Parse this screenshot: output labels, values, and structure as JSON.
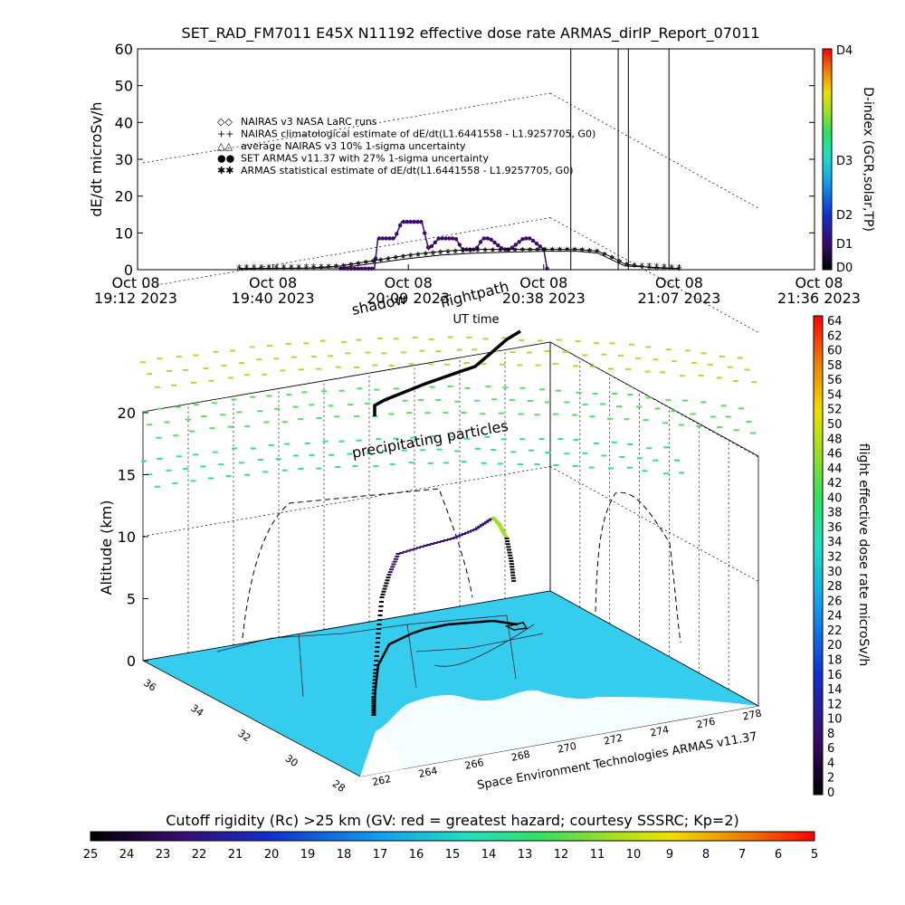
{
  "title": "SET_RAD_FM7011   E45X N11192 effective dose rate ARMAS_dirIP_Report_07011",
  "chart_data": [
    {
      "type": "line",
      "ylabel": "dE/dt microSv/h",
      "xlabel": "UT time",
      "ylim": [
        0,
        60
      ],
      "yticks": [
        "0",
        "10",
        "20",
        "30",
        "40",
        "50",
        "60"
      ],
      "xticks": [
        {
          "date": "Oct 08",
          "time": "19:12 2023"
        },
        {
          "date": "Oct 08",
          "time": "19:40 2023"
        },
        {
          "date": "Oct 08",
          "time": "20:09 2023"
        },
        {
          "date": "Oct 08",
          "time": "20:38 2023"
        },
        {
          "date": "Oct 08",
          "time": "21:07 2023"
        },
        {
          "date": "Oct 08",
          "time": "21:36 2023"
        }
      ],
      "legend": [
        {
          "symbol": "◇◇",
          "label": "NAIRAS v3 NASA LaRC runs"
        },
        {
          "symbol": "++",
          "label": "NAIRAS climatological estimate of dE/dt(L1.6441558 - L1.9257705, G0)"
        },
        {
          "symbol": "△△",
          "label": "average NAIRAS v3 10% 1-sigma uncertainty"
        },
        {
          "symbol": "●●",
          "label": "SET ARMAS v11.37 with 27% 1-sigma uncertainty"
        },
        {
          "symbol": "✱✱",
          "label": "ARMAS statistical estimate of dE/dt(L1.6441558 - L1.9257705, G0)"
        }
      ],
      "series": [
        {
          "name": "SET ARMAS v11.37 with 27% 1-sigma uncertainty",
          "color": "#3a0a6e",
          "x": [
            0.3,
            0.35,
            0.355,
            0.38,
            0.39,
            0.42,
            0.43,
            0.445,
            0.47,
            0.48,
            0.5,
            0.51,
            0.52,
            0.54,
            0.55,
            0.57,
            0.58,
            0.6,
            0.605
          ],
          "y": [
            0.3,
            0.3,
            8.5,
            8.5,
            13,
            13,
            5.5,
            8.5,
            8.5,
            5.5,
            5.5,
            8.5,
            8.5,
            5.5,
            5.5,
            8.5,
            8.5,
            5.5,
            0.3
          ]
        },
        {
          "name": "NAIRAS v3 NASA LaRC runs",
          "color": "#000",
          "x": [
            0.15,
            0.25,
            0.3,
            0.35,
            0.4,
            0.45,
            0.5,
            0.55,
            0.6,
            0.65,
            0.68,
            0.7,
            0.72,
            0.76,
            0.8
          ],
          "y": [
            0.3,
            0.4,
            1,
            2.5,
            4,
            5,
            5.5,
            5.5,
            5.5,
            5.5,
            5,
            3.5,
            1.5,
            0.5,
            0.3
          ]
        },
        {
          "name": "ARMAS statistical estimate",
          "color": "#000",
          "x": [
            0.15,
            0.3,
            0.4,
            0.45,
            0.5,
            0.55,
            0.6,
            0.65,
            0.68,
            0.72,
            0.8
          ],
          "y": [
            0.3,
            0.5,
            3,
            4,
            4.5,
            4.8,
            5,
            5,
            4.5,
            1,
            0.3
          ]
        }
      ],
      "spikes_x": [
        0.64,
        0.71,
        0.725,
        0.785
      ],
      "right_axis": {
        "label": "D-index (GCR,solar,TP)",
        "ticks": [
          "D4",
          "D3",
          "D2",
          "D1",
          "D0"
        ]
      }
    },
    {
      "type": "scatter",
      "ylabel": "Altitude (km)",
      "yticks": [
        "0",
        "5",
        "10",
        "15",
        "20"
      ],
      "lat_ticks": [
        "36",
        "34",
        "32",
        "30",
        "28"
      ],
      "lon_ticks": [
        "262",
        "264",
        "266",
        "268",
        "270",
        "272",
        "274",
        "276",
        "278"
      ],
      "annotations": {
        "shadow": "shadow",
        "flightpath": "flightpath",
        "particles": "precipitating particles"
      },
      "credit": "Space Environment Technologies ARMAS v11.37",
      "colorbar_label": "flight effective dose rate microSv/h",
      "colorbar_ticks": [
        "64",
        "62",
        "60",
        "58",
        "56",
        "54",
        "52",
        "50",
        "48",
        "46",
        "44",
        "42",
        "40",
        "38",
        "36",
        "34",
        "32",
        "30",
        "28",
        "26",
        "24",
        "22",
        "20",
        "18",
        "16",
        "14",
        "12",
        "10",
        "8",
        "6",
        "4",
        "2",
        "0"
      ]
    }
  ],
  "bottom_bar": {
    "label": "Cutoff rigidity (Rc) >25 km (GV: red = greatest hazard; courtesy SSSRC; Kp=2)",
    "ticks": [
      "25",
      "24",
      "23",
      "22",
      "21",
      "20",
      "19",
      "18",
      "17",
      "16",
      "15",
      "14",
      "13",
      "12",
      "11",
      "10",
      "9",
      "8",
      "7",
      "6",
      "5"
    ]
  },
  "colors": {
    "sea": "#4fe0f0",
    "land": "#33ccee",
    "rainbow": [
      "#000000",
      "#3a0a6e",
      "#1030d0",
      "#10a0f0",
      "#20e0c0",
      "#30e060",
      "#a0e020",
      "#f0e000",
      "#f08000",
      "#ff0000"
    ]
  }
}
